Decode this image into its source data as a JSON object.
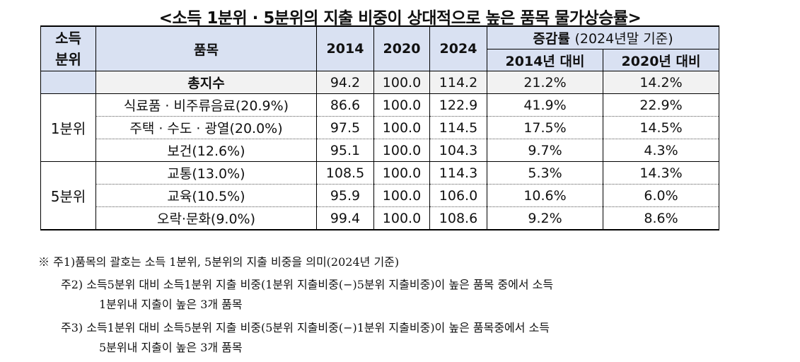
{
  "title": "<소득 1분위 · 5분위의 지출 비중이 상대적으로 높은 품목 물가상승률>",
  "header": {
    "quintile": "소득\n분위",
    "item": "품목",
    "y2014": "2014",
    "y2020": "2020",
    "y2024": "2024",
    "change_bold": "증감률",
    "change_note": "(2024년말 기준)",
    "vs2014": "2014년 대비",
    "vs2020": "2020년 대비"
  },
  "total_row": {
    "item": "총지수",
    "v2014": "94.2",
    "v2020": "100.0",
    "v2024": "114.2",
    "c2014": "21.2%",
    "c2020": "14.2%"
  },
  "groups": [
    {
      "label": "1분위",
      "rows": [
        {
          "item": "식료품 · 비주류음료(20.9%)",
          "v2014": "86.6",
          "v2020": "100.0",
          "v2024": "122.9",
          "c2014": "41.9%",
          "c2020": "22.9%"
        },
        {
          "item": "주택 · 수도 · 광열(20.0%)",
          "v2014": "97.5",
          "v2020": "100.0",
          "v2024": "114.5",
          "c2014": "17.5%",
          "c2020": "14.5%"
        },
        {
          "item": "보건(12.6%)",
          "v2014": "95.1",
          "v2020": "100.0",
          "v2024": "104.3",
          "c2014": "9.7%",
          "c2020": "4.3%"
        }
      ]
    },
    {
      "label": "5분위",
      "rows": [
        {
          "item": "교통(13.0%)",
          "v2014": "108.5",
          "v2020": "100.0",
          "v2024": "114.3",
          "c2014": "5.3%",
          "c2020": "14.3%"
        },
        {
          "item": "교육(10.5%)",
          "v2014": "95.9",
          "v2020": "100.0",
          "v2024": "106.0",
          "c2014": "10.6%",
          "c2020": "6.0%"
        },
        {
          "item": "오락·문화(9.0%)",
          "v2014": "99.4",
          "v2020": "100.0",
          "v2024": "108.6",
          "c2014": "9.2%",
          "c2020": "8.6%"
        }
      ]
    }
  ],
  "notes": {
    "n1": "※ 주1)품목의 괄호는 소득 1분위, 5분위의 지출 비중을 의미(2024년 기준)",
    "n2a": "주2) 소득5분위 대비 소득1분위 지출 비중(1분위 지출비중(−)5분위 지출비중)이 높은 품목 중에서 소득",
    "n2b": "1분위내 지출이 높은 3개 품목",
    "n3a": "주3) 소득1분위 대비 소득5분위 지출 비중(5분위 지출비중(−)1분위 지출비중)이 높은 품목중에서 소득",
    "n3b": "5분위내 지출이 높은 3개 품목"
  }
}
